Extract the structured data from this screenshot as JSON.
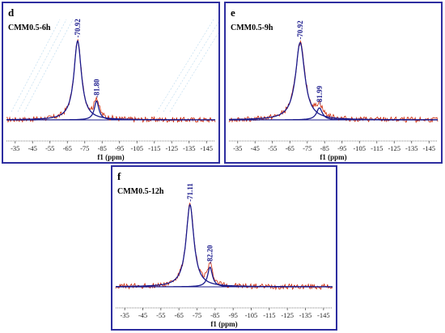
{
  "chart_data": [
    {
      "type": "line",
      "panel": "d",
      "sample": "CMM0.5-6h",
      "xlabel": "f1 (ppm)",
      "xlim": [
        -30,
        -150
      ],
      "ticks": [
        -35,
        -45,
        -55,
        -65,
        -75,
        -85,
        -95,
        -105,
        -115,
        -125,
        -135,
        -145
      ],
      "peaks": [
        {
          "center": -70.92,
          "label": "-70.92",
          "height": 0.92,
          "width": 2.6
        },
        {
          "center": -81.8,
          "label": "-81.80",
          "height": 0.22,
          "width": 1.6
        }
      ],
      "series": [
        {
          "name": "",
          "color": "#cc2200"
        },
        {
          "name": "",
          "color": "#1a1a8c"
        }
      ],
      "background_lines": true
    },
    {
      "type": "line",
      "panel": "e",
      "sample": "CMM0.5-9h",
      "xlabel": "f1 (ppm)",
      "xlim": [
        -30,
        -150
      ],
      "ticks": [
        -35,
        -45,
        -55,
        -65,
        -75,
        -85,
        -95,
        -105,
        -115,
        -125,
        -135,
        -145
      ],
      "peaks": [
        {
          "center": -70.92,
          "label": "-70.92",
          "height": 0.9,
          "width": 3.2
        },
        {
          "center": -81.99,
          "label": "-81.99",
          "height": 0.14,
          "width": 2.0
        }
      ],
      "series": [
        {
          "name": "",
          "color": "#cc2200"
        },
        {
          "name": "",
          "color": "#1a1a8c"
        }
      ],
      "background_lines": false
    },
    {
      "type": "line",
      "panel": "f",
      "sample": "CMM0.5-12h",
      "xlabel": "f1 (ppm)",
      "xlim": [
        -30,
        -150
      ],
      "ticks": [
        -35,
        -45,
        -55,
        -65,
        -75,
        -85,
        -95,
        -105,
        -115,
        -125,
        -135,
        -145
      ],
      "peaks": [
        {
          "center": -71.11,
          "label": "-71.11",
          "height": 0.92,
          "width": 2.6
        },
        {
          "center": -82.2,
          "label": "-82.20",
          "height": 0.22,
          "width": 1.6
        }
      ],
      "series": [
        {
          "name": "",
          "color": "#cc2200"
        },
        {
          "name": "",
          "color": "#1a1a8c"
        }
      ],
      "background_lines": false
    }
  ]
}
